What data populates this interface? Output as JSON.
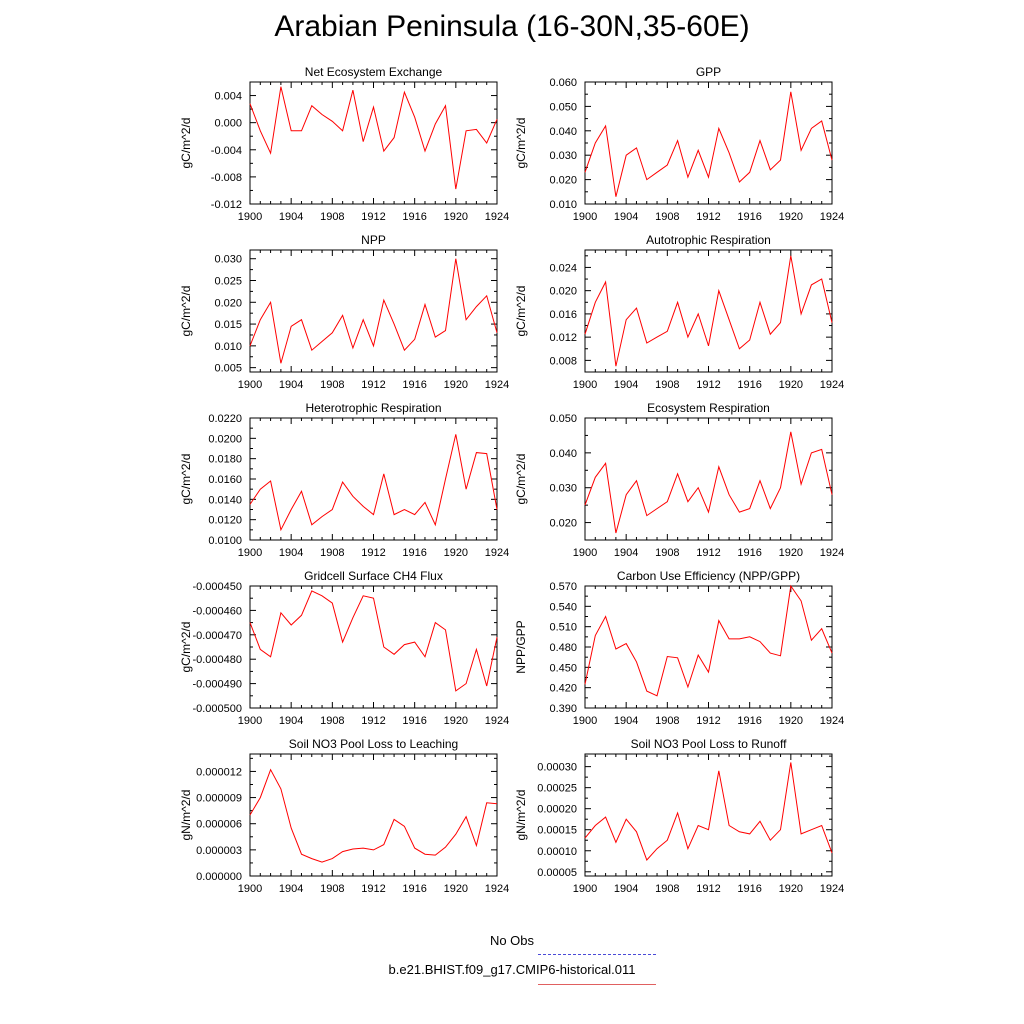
{
  "title": "Arabian Peninsula (16-30N,35-60E)",
  "legend": {
    "obs_label": "No Obs",
    "obs_color": "#4a4ad8",
    "model_label": "b.e21.BHIST.f09_g17.CMIP6-historical.011",
    "model_color": "#e06060"
  },
  "chart_data": [
    {
      "type": "line",
      "title": "Net Ecosystem Exchange",
      "ylabel": "gC/m^2/d",
      "xlabel": "",
      "xlim": [
        1900,
        1924
      ],
      "xticks": [
        "1900",
        "1904",
        "1908",
        "1912",
        "1916",
        "1920",
        "1924"
      ],
      "ylim": [
        -0.012,
        0.006
      ],
      "yticks": [
        "0.004",
        "0.000",
        "-0.004",
        "-0.008",
        "-0.012"
      ],
      "ytick_values": [
        0.004,
        0.0,
        -0.004,
        -0.008,
        -0.012
      ],
      "x": [
        1900,
        1901,
        1902,
        1903,
        1904,
        1905,
        1906,
        1907,
        1908,
        1909,
        1910,
        1911,
        1912,
        1913,
        1914,
        1915,
        1916,
        1917,
        1918,
        1919,
        1920,
        1921,
        1922,
        1923,
        1924
      ],
      "series": [
        {
          "values": [
            0.0028,
            -0.0012,
            -0.0045,
            0.0053,
            -0.0012,
            -0.0012,
            0.0025,
            0.0012,
            0.0002,
            -0.0012,
            0.0048,
            -0.0028,
            0.0023,
            -0.0042,
            -0.0022,
            0.0045,
            0.0008,
            -0.0042,
            -0.0002,
            0.0025,
            -0.0098,
            -0.0012,
            -0.001,
            -0.003,
            0.0005
          ],
          "color": "#ff0000"
        }
      ]
    },
    {
      "type": "line",
      "title": "GPP",
      "ylabel": "gC/m^2/d",
      "xlabel": "",
      "xlim": [
        1900,
        1924
      ],
      "xticks": [
        "1900",
        "1904",
        "1908",
        "1912",
        "1916",
        "1920",
        "1924"
      ],
      "ylim": [
        0.01,
        0.06
      ],
      "yticks": [
        "0.060",
        "0.050",
        "0.040",
        "0.030",
        "0.020",
        "0.010"
      ],
      "ytick_values": [
        0.06,
        0.05,
        0.04,
        0.03,
        0.02,
        0.01
      ],
      "x": [
        1900,
        1901,
        1902,
        1903,
        1904,
        1905,
        1906,
        1907,
        1908,
        1909,
        1910,
        1911,
        1912,
        1913,
        1914,
        1915,
        1916,
        1917,
        1918,
        1919,
        1920,
        1921,
        1922,
        1923,
        1924
      ],
      "series": [
        {
          "values": [
            0.023,
            0.035,
            0.042,
            0.013,
            0.03,
            0.033,
            0.02,
            0.023,
            0.026,
            0.036,
            0.021,
            0.032,
            0.021,
            0.041,
            0.031,
            0.019,
            0.023,
            0.036,
            0.024,
            0.028,
            0.056,
            0.032,
            0.041,
            0.044,
            0.028
          ],
          "color": "#ff0000"
        }
      ]
    },
    {
      "type": "line",
      "title": "NPP",
      "ylabel": "gC/m^2/d",
      "xlabel": "",
      "xlim": [
        1900,
        1924
      ],
      "xticks": [
        "1900",
        "1904",
        "1908",
        "1912",
        "1916",
        "1920",
        "1924"
      ],
      "ylim": [
        0.004,
        0.032
      ],
      "yticks": [
        "0.030",
        "0.025",
        "0.020",
        "0.015",
        "0.010",
        "0.005"
      ],
      "ytick_values": [
        0.03,
        0.025,
        0.02,
        0.015,
        0.01,
        0.005
      ],
      "x": [
        1900,
        1901,
        1902,
        1903,
        1904,
        1905,
        1906,
        1907,
        1908,
        1909,
        1910,
        1911,
        1912,
        1913,
        1914,
        1915,
        1916,
        1917,
        1918,
        1919,
        1920,
        1921,
        1922,
        1923,
        1924
      ],
      "series": [
        {
          "values": [
            0.01,
            0.016,
            0.02,
            0.006,
            0.0145,
            0.016,
            0.009,
            0.011,
            0.013,
            0.017,
            0.0095,
            0.016,
            0.01,
            0.0205,
            0.015,
            0.009,
            0.0115,
            0.0195,
            0.012,
            0.0135,
            0.03,
            0.016,
            0.019,
            0.0215,
            0.013
          ],
          "color": "#ff0000"
        }
      ]
    },
    {
      "type": "line",
      "title": "Autotrophic Respiration",
      "ylabel": "gC/m^2/d",
      "xlabel": "",
      "xlim": [
        1900,
        1924
      ],
      "xticks": [
        "1900",
        "1904",
        "1908",
        "1912",
        "1916",
        "1920",
        "1924"
      ],
      "ylim": [
        0.006,
        0.027
      ],
      "yticks": [
        "0.024",
        "0.020",
        "0.016",
        "0.012",
        "0.008"
      ],
      "ytick_values": [
        0.024,
        0.02,
        0.016,
        0.012,
        0.008
      ],
      "x": [
        1900,
        1901,
        1902,
        1903,
        1904,
        1905,
        1906,
        1907,
        1908,
        1909,
        1910,
        1911,
        1912,
        1913,
        1914,
        1915,
        1916,
        1917,
        1918,
        1919,
        1920,
        1921,
        1922,
        1923,
        1924
      ],
      "series": [
        {
          "values": [
            0.0125,
            0.018,
            0.0215,
            0.007,
            0.015,
            0.017,
            0.011,
            0.012,
            0.013,
            0.018,
            0.012,
            0.016,
            0.0105,
            0.02,
            0.015,
            0.01,
            0.0115,
            0.018,
            0.0125,
            0.0145,
            0.026,
            0.016,
            0.021,
            0.022,
            0.0145
          ],
          "color": "#ff0000"
        }
      ]
    },
    {
      "type": "line",
      "title": "Heterotrophic Respiration",
      "ylabel": "gC/m^2/d",
      "xlabel": "",
      "xlim": [
        1900,
        1924
      ],
      "xticks": [
        "1900",
        "1904",
        "1908",
        "1912",
        "1916",
        "1920",
        "1924"
      ],
      "ylim": [
        0.01,
        0.022
      ],
      "yticks": [
        "0.0220",
        "0.0200",
        "0.0180",
        "0.0160",
        "0.0140",
        "0.0120",
        "0.0100"
      ],
      "ytick_values": [
        0.022,
        0.02,
        0.018,
        0.016,
        0.014,
        0.012,
        0.01
      ],
      "x": [
        1900,
        1901,
        1902,
        1903,
        1904,
        1905,
        1906,
        1907,
        1908,
        1909,
        1910,
        1911,
        1912,
        1913,
        1914,
        1915,
        1916,
        1917,
        1918,
        1919,
        1920,
        1921,
        1922,
        1923,
        1924
      ],
      "series": [
        {
          "values": [
            0.0135,
            0.015,
            0.0158,
            0.011,
            0.013,
            0.0148,
            0.0115,
            0.0123,
            0.013,
            0.0157,
            0.0143,
            0.0133,
            0.0125,
            0.0165,
            0.0125,
            0.013,
            0.0125,
            0.0137,
            0.0115,
            0.016,
            0.0204,
            0.015,
            0.0186,
            0.0185,
            0.013
          ],
          "color": "#ff0000"
        }
      ]
    },
    {
      "type": "line",
      "title": "Ecosystem Respiration",
      "ylabel": "gC/m^2/d",
      "xlabel": "",
      "xlim": [
        1900,
        1924
      ],
      "xticks": [
        "1900",
        "1904",
        "1908",
        "1912",
        "1916",
        "1920",
        "1924"
      ],
      "ylim": [
        0.015,
        0.05
      ],
      "yticks": [
        "0.050",
        "0.040",
        "0.030",
        "0.020"
      ],
      "ytick_values": [
        0.05,
        0.04,
        0.03,
        0.02
      ],
      "x": [
        1900,
        1901,
        1902,
        1903,
        1904,
        1905,
        1906,
        1907,
        1908,
        1909,
        1910,
        1911,
        1912,
        1913,
        1914,
        1915,
        1916,
        1917,
        1918,
        1919,
        1920,
        1921,
        1922,
        1923,
        1924
      ],
      "series": [
        {
          "values": [
            0.025,
            0.033,
            0.037,
            0.017,
            0.028,
            0.032,
            0.022,
            0.024,
            0.026,
            0.034,
            0.026,
            0.03,
            0.023,
            0.036,
            0.028,
            0.023,
            0.024,
            0.032,
            0.024,
            0.03,
            0.046,
            0.031,
            0.04,
            0.041,
            0.028
          ],
          "color": "#ff0000"
        }
      ]
    },
    {
      "type": "line",
      "title": "Gridcell Surface CH4 Flux",
      "ylabel": "gC/m^2/d",
      "xlabel": "",
      "xlim": [
        1900,
        1924
      ],
      "xticks": [
        "1900",
        "1904",
        "1908",
        "1912",
        "1916",
        "1920",
        "1924"
      ],
      "ylim": [
        -0.0005,
        -0.00045
      ],
      "yticks": [
        "-0.000450",
        "-0.000460",
        "-0.000470",
        "-0.000480",
        "-0.000490",
        "-0.000500"
      ],
      "ytick_values": [
        -0.00045,
        -0.00046,
        -0.00047,
        -0.00048,
        -0.00049,
        -0.0005
      ],
      "x": [
        1900,
        1901,
        1902,
        1903,
        1904,
        1905,
        1906,
        1907,
        1908,
        1909,
        1910,
        1911,
        1912,
        1913,
        1914,
        1915,
        1916,
        1917,
        1918,
        1919,
        1920,
        1921,
        1922,
        1923,
        1924
      ],
      "series": [
        {
          "values": [
            -0.000465,
            -0.000476,
            -0.000479,
            -0.000461,
            -0.000466,
            -0.000462,
            -0.000452,
            -0.000454,
            -0.000457,
            -0.000473,
            -0.000463,
            -0.000454,
            -0.000455,
            -0.000475,
            -0.000478,
            -0.000474,
            -0.000473,
            -0.000479,
            -0.000465,
            -0.000468,
            -0.000493,
            -0.00049,
            -0.000476,
            -0.000491,
            -0.000471
          ],
          "color": "#ff0000"
        }
      ]
    },
    {
      "type": "line",
      "title": "Carbon Use Efficiency (NPP/GPP)",
      "ylabel": "NPP/GPP",
      "xlabel": "",
      "xlim": [
        1900,
        1924
      ],
      "xticks": [
        "1900",
        "1904",
        "1908",
        "1912",
        "1916",
        "1920",
        "1924"
      ],
      "ylim": [
        0.39,
        0.57
      ],
      "yticks": [
        "0.570",
        "0.540",
        "0.510",
        "0.480",
        "0.450",
        "0.420",
        "0.390"
      ],
      "ytick_values": [
        0.57,
        0.54,
        0.51,
        0.48,
        0.45,
        0.42,
        0.39
      ],
      "x": [
        1900,
        1901,
        1902,
        1903,
        1904,
        1905,
        1906,
        1907,
        1908,
        1909,
        1910,
        1911,
        1912,
        1913,
        1914,
        1915,
        1916,
        1917,
        1918,
        1919,
        1920,
        1921,
        1922,
        1923,
        1924
      ],
      "series": [
        {
          "values": [
            0.425,
            0.497,
            0.525,
            0.477,
            0.485,
            0.458,
            0.415,
            0.408,
            0.466,
            0.464,
            0.421,
            0.468,
            0.443,
            0.519,
            0.492,
            0.492,
            0.495,
            0.488,
            0.471,
            0.467,
            0.57,
            0.548,
            0.49,
            0.507,
            0.471
          ],
          "color": "#ff0000"
        }
      ]
    },
    {
      "type": "line",
      "title": "Soil NO3 Pool Loss to Leaching",
      "ylabel": "gN/m^2/d",
      "xlabel": "",
      "xlim": [
        1900,
        1924
      ],
      "xticks": [
        "1900",
        "1904",
        "1908",
        "1912",
        "1916",
        "1920",
        "1924"
      ],
      "ylim": [
        0.0,
        1.4e-05
      ],
      "yticks": [
        "0.000012",
        "0.000009",
        "0.000006",
        "0.000003",
        "0.000000"
      ],
      "ytick_values": [
        1.2e-05,
        9e-06,
        6e-06,
        3e-06,
        0.0
      ],
      "x": [
        1900,
        1901,
        1902,
        1903,
        1904,
        1905,
        1906,
        1907,
        1908,
        1909,
        1910,
        1911,
        1912,
        1913,
        1914,
        1915,
        1916,
        1917,
        1918,
        1919,
        1920,
        1921,
        1922,
        1923,
        1924
      ],
      "series": [
        {
          "values": [
            7e-06,
            9e-06,
            1.22e-05,
            1e-05,
            5.5e-06,
            2.5e-06,
            2e-06,
            1.6e-06,
            2e-06,
            2.8e-06,
            3.1e-06,
            3.2e-06,
            3e-06,
            3.6e-06,
            6.5e-06,
            5.7e-06,
            3.2e-06,
            2.5e-06,
            2.4e-06,
            3.3e-06,
            4.8e-06,
            6.8e-06,
            3.5e-06,
            8.4e-06,
            8.3e-06
          ],
          "color": "#ff0000"
        }
      ]
    },
    {
      "type": "line",
      "title": "Soil NO3 Pool Loss to Runoff",
      "ylabel": "gN/m^2/d",
      "xlabel": "",
      "xlim": [
        1900,
        1924
      ],
      "xticks": [
        "1900",
        "1904",
        "1908",
        "1912",
        "1916",
        "1920",
        "1924"
      ],
      "ylim": [
        4e-05,
        0.00033
      ],
      "yticks": [
        "0.00030",
        "0.00025",
        "0.00020",
        "0.00015",
        "0.00010",
        "0.00005"
      ],
      "ytick_values": [
        0.0003,
        0.00025,
        0.0002,
        0.00015,
        0.0001,
        5e-05
      ],
      "x": [
        1900,
        1901,
        1902,
        1903,
        1904,
        1905,
        1906,
        1907,
        1908,
        1909,
        1910,
        1911,
        1912,
        1913,
        1914,
        1915,
        1916,
        1917,
        1918,
        1919,
        1920,
        1921,
        1922,
        1923,
        1924
      ],
      "series": [
        {
          "values": [
            0.00013,
            0.00016,
            0.00018,
            0.00012,
            0.000175,
            0.000145,
            7.8e-05,
            0.000105,
            0.000125,
            0.00019,
            0.000105,
            0.00016,
            0.00015,
            0.00029,
            0.00016,
            0.000145,
            0.00014,
            0.00017,
            0.000125,
            0.00015,
            0.00031,
            0.00014,
            0.00015,
            0.00016,
            9.5e-05
          ],
          "color": "#ff0000"
        }
      ]
    }
  ]
}
